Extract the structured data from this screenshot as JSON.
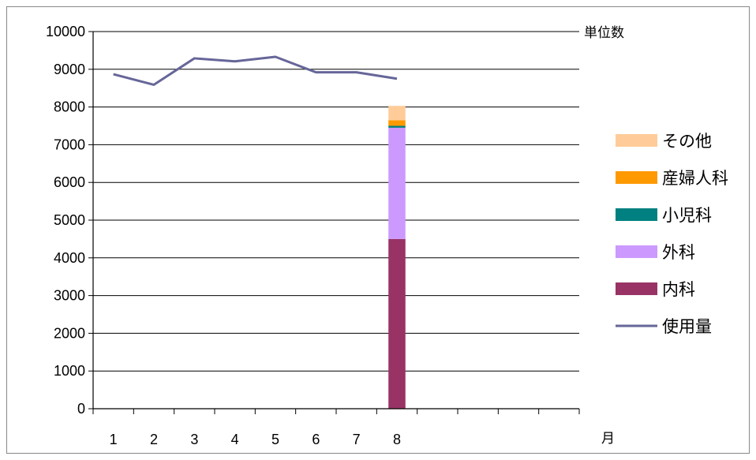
{
  "chart_data": {
    "type": "bar",
    "x": [
      "1",
      "2",
      "3",
      "4",
      "5",
      "6",
      "7",
      "8",
      "",
      "",
      "",
      ""
    ],
    "ylim": [
      0,
      10000
    ],
    "y_ticks": [
      0,
      1000,
      2000,
      3000,
      4000,
      5000,
      6000,
      7000,
      8000,
      9000,
      10000
    ],
    "ylabel": "単位数",
    "xlabel": "月",
    "grid": true,
    "legend": "right",
    "series": [
      {
        "name": "内科",
        "type": "stacked-bar",
        "color": "#993366",
        "values": [
          null,
          null,
          null,
          null,
          null,
          null,
          null,
          4500,
          null,
          null,
          null,
          null
        ]
      },
      {
        "name": "外科",
        "type": "stacked-bar",
        "color": "#cc99ff",
        "values": [
          null,
          null,
          null,
          null,
          null,
          null,
          null,
          2950,
          null,
          null,
          null,
          null
        ]
      },
      {
        "name": "小児科",
        "type": "stacked-bar",
        "color": "#008080",
        "values": [
          null,
          null,
          null,
          null,
          null,
          null,
          null,
          50,
          null,
          null,
          null,
          null
        ]
      },
      {
        "name": "産婦人科",
        "type": "stacked-bar",
        "color": "#ff9900",
        "values": [
          null,
          null,
          null,
          null,
          null,
          null,
          null,
          150,
          null,
          null,
          null,
          null
        ]
      },
      {
        "name": "その他",
        "type": "stacked-bar",
        "color": "#ffcc99",
        "values": [
          null,
          null,
          null,
          null,
          null,
          null,
          null,
          380,
          null,
          null,
          null,
          null
        ]
      },
      {
        "name": "使用量",
        "type": "line",
        "color": "#666699",
        "values": [
          8870,
          8590,
          9290,
          9210,
          9330,
          8920,
          8920,
          8750,
          null,
          null,
          null,
          null
        ]
      }
    ],
    "legend_order": [
      "その他",
      "産婦人科",
      "小児科",
      "外科",
      "内科",
      "使用量"
    ]
  }
}
